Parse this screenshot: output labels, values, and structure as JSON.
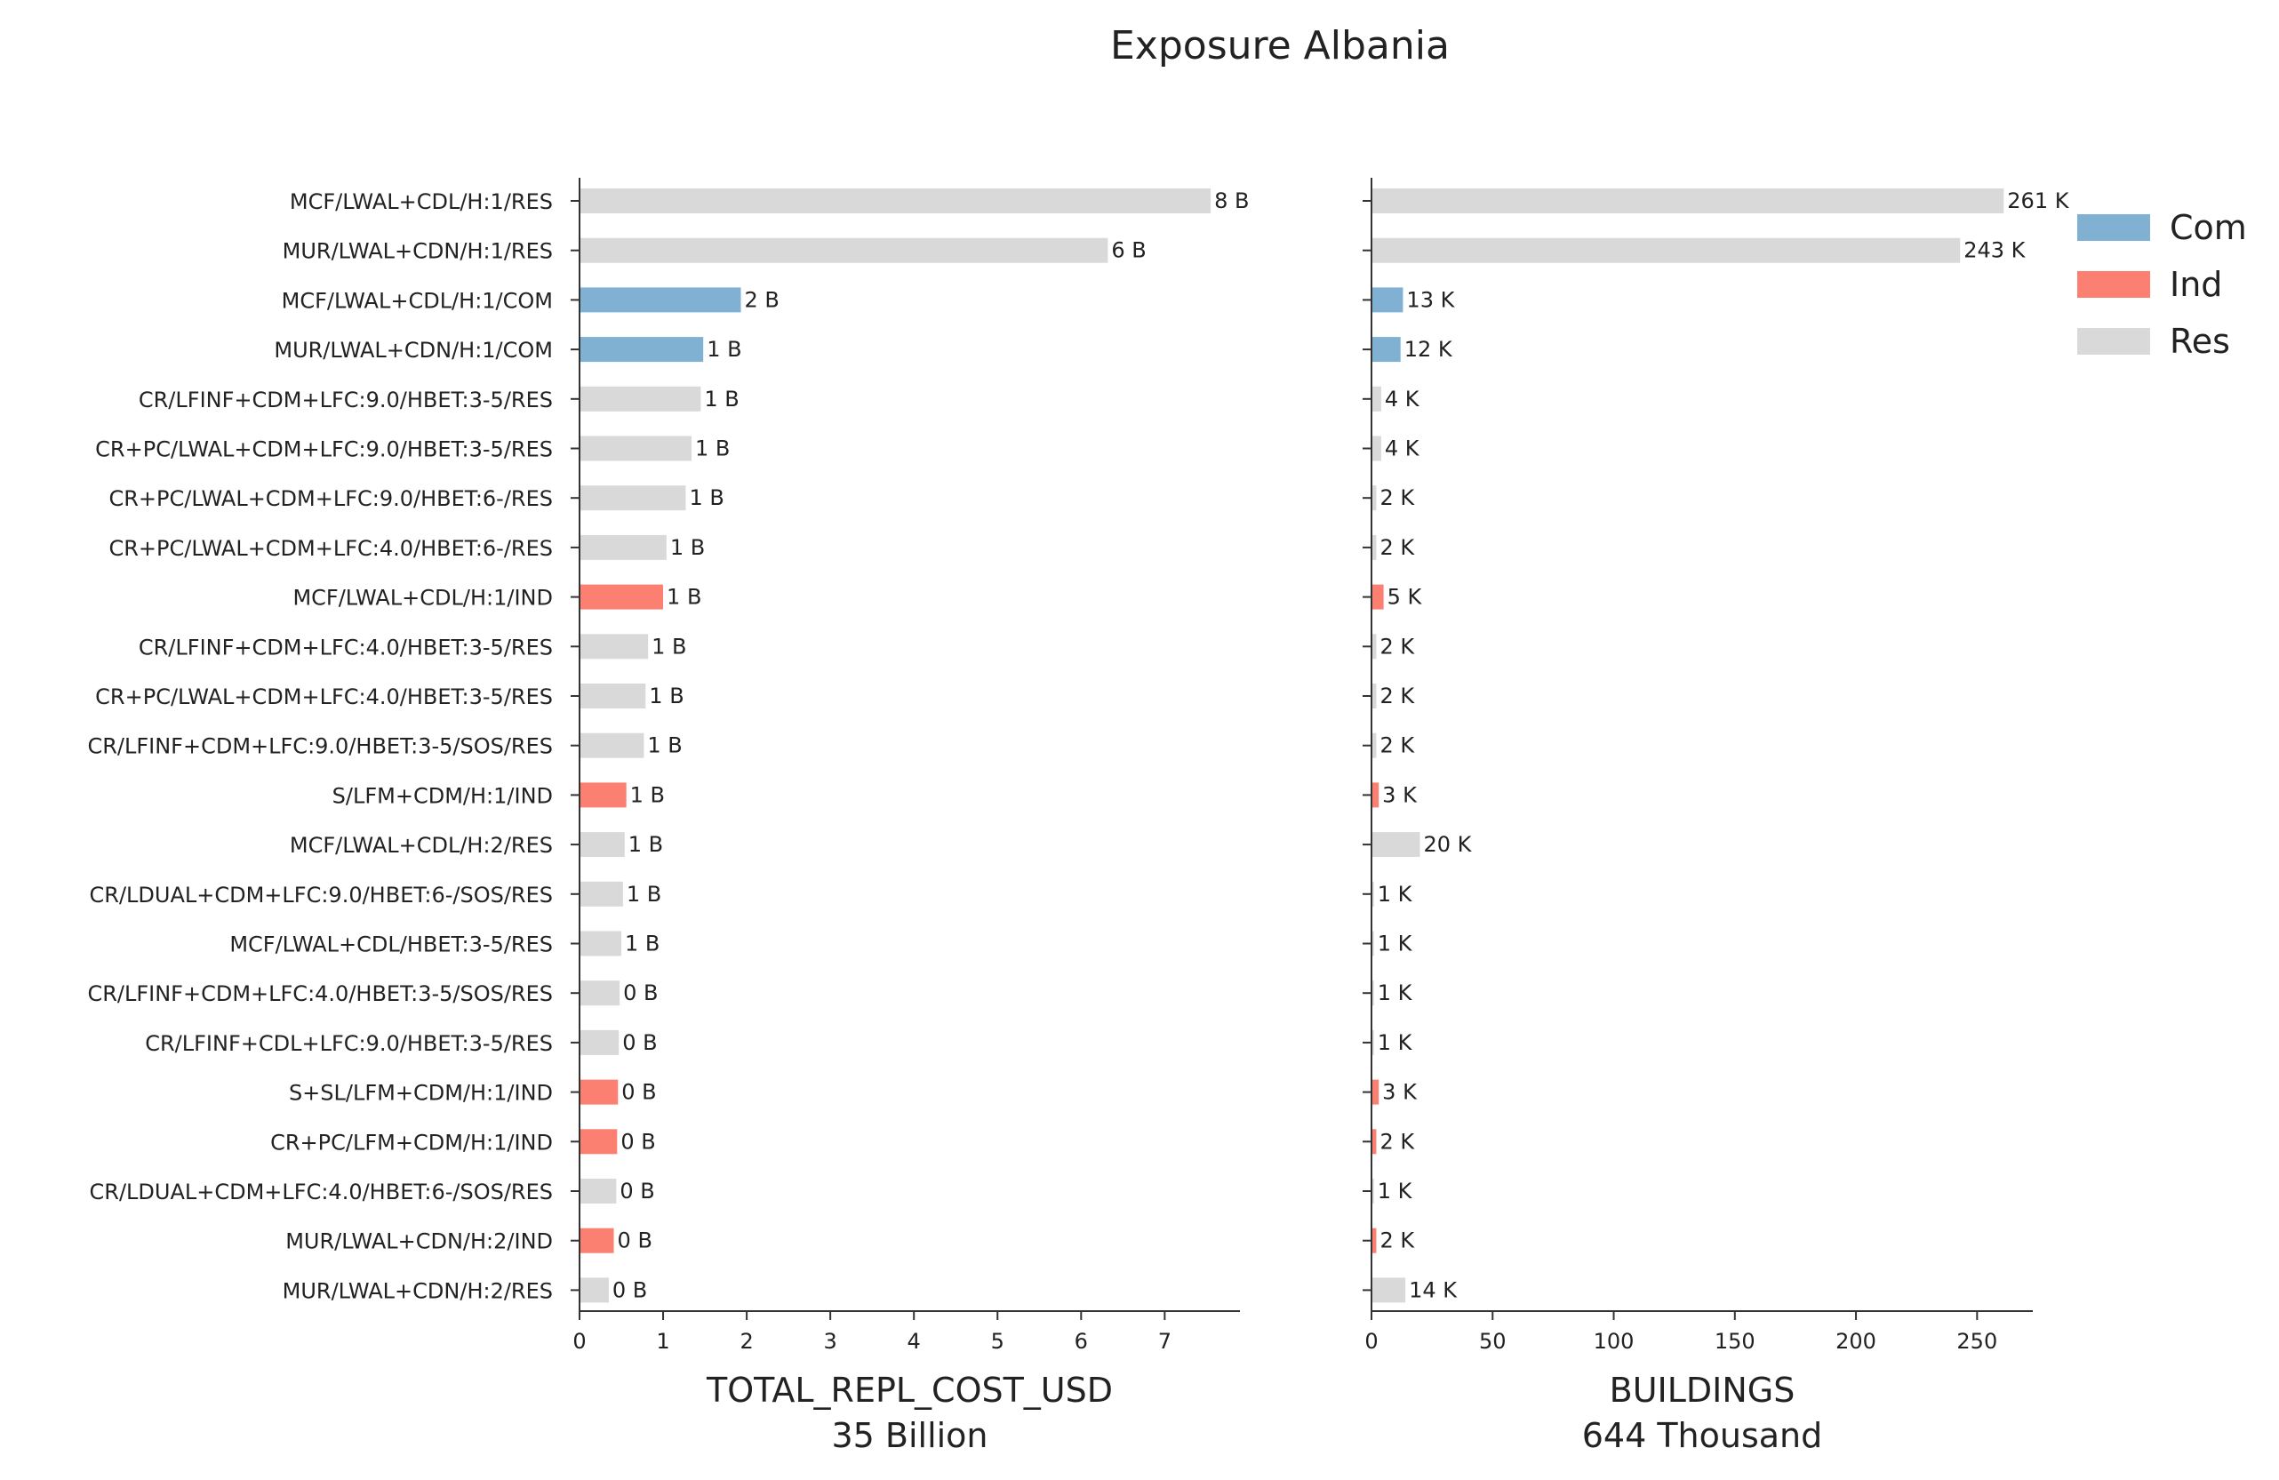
{
  "chart_data": {
    "type": "bar",
    "orientation": "horizontal",
    "title": "Exposure Albania",
    "colors": {
      "Com": "#80b1d3",
      "Ind": "#fb8072",
      "Res": "#d9d9d9"
    },
    "legend": {
      "position": "top-right",
      "entries": [
        "Com",
        "Ind",
        "Res"
      ]
    },
    "categories": [
      "MCF/LWAL+CDL/H:1/RES",
      "MUR/LWAL+CDN/H:1/RES",
      "MCF/LWAL+CDL/H:1/COM",
      "MUR/LWAL+CDN/H:1/COM",
      "CR/LFINF+CDM+LFC:9.0/HBET:3-5/RES",
      "CR+PC/LWAL+CDM+LFC:9.0/HBET:3-5/RES",
      "CR+PC/LWAL+CDM+LFC:9.0/HBET:6-/RES",
      "CR+PC/LWAL+CDM+LFC:4.0/HBET:6-/RES",
      "MCF/LWAL+CDL/H:1/IND",
      "CR/LFINF+CDM+LFC:4.0/HBET:3-5/RES",
      "CR+PC/LWAL+CDM+LFC:4.0/HBET:3-5/RES",
      "CR/LFINF+CDM+LFC:9.0/HBET:3-5/SOS/RES",
      "S/LFM+CDM/H:1/IND",
      "MCF/LWAL+CDL/H:2/RES",
      "CR/LDUAL+CDM+LFC:9.0/HBET:6-/SOS/RES",
      "MCF/LWAL+CDL/HBET:3-5/RES",
      "CR/LFINF+CDM+LFC:4.0/HBET:3-5/SOS/RES",
      "CR/LFINF+CDL+LFC:9.0/HBET:3-5/RES",
      "S+SL/LFM+CDM/H:1/IND",
      "CR+PC/LFM+CDM/H:1/IND",
      "CR/LDUAL+CDM+LFC:4.0/HBET:6-/SOS/RES",
      "MUR/LWAL+CDN/H:2/IND",
      "MUR/LWAL+CDN/H:2/RES"
    ],
    "occupancy": [
      "Res",
      "Res",
      "Com",
      "Com",
      "Res",
      "Res",
      "Res",
      "Res",
      "Ind",
      "Res",
      "Res",
      "Res",
      "Ind",
      "Res",
      "Res",
      "Res",
      "Res",
      "Res",
      "Ind",
      "Ind",
      "Res",
      "Ind",
      "Res"
    ],
    "panels": [
      {
        "xlabel": "TOTAL_REPL_COST_USD",
        "xlabel_sub": "35 Billion",
        "xlim": [
          0,
          7.9
        ],
        "xticks": [
          0,
          1,
          2,
          3,
          4,
          5,
          6,
          7
        ],
        "values": [
          7.55,
          6.32,
          1.93,
          1.48,
          1.45,
          1.34,
          1.27,
          1.04,
          1.0,
          0.82,
          0.79,
          0.77,
          0.56,
          0.54,
          0.52,
          0.5,
          0.48,
          0.47,
          0.46,
          0.45,
          0.44,
          0.41,
          0.35
        ],
        "value_labels": [
          "8 B",
          "6 B",
          "2 B",
          "1 B",
          "1 B",
          "1 B",
          "1 B",
          "1 B",
          "1 B",
          "1 B",
          "1 B",
          "1 B",
          "1 B",
          "1 B",
          "1 B",
          "1 B",
          "0 B",
          "0 B",
          "0 B",
          "0 B",
          "0 B",
          "0 B",
          "0 B"
        ]
      },
      {
        "xlabel": "BUILDINGS",
        "xlabel_sub": "644 Thousand",
        "xlim": [
          0,
          273
        ],
        "xticks": [
          0,
          50,
          100,
          150,
          200,
          250
        ],
        "values": [
          261,
          243,
          13,
          12,
          4,
          4,
          2,
          2,
          5,
          2,
          2,
          2,
          3,
          20,
          1,
          1,
          1,
          1,
          3,
          2,
          1,
          2,
          14
        ],
        "value_labels": [
          "261 K",
          "243 K",
          "13 K",
          "12 K",
          "4 K",
          "4 K",
          "2 K",
          "2 K",
          "5 K",
          "2 K",
          "2 K",
          "2 K",
          "3 K",
          "20 K",
          "1 K",
          "1 K",
          "1 K",
          "1 K",
          "3 K",
          "2 K",
          "1 K",
          "2 K",
          "14 K"
        ]
      }
    ]
  }
}
